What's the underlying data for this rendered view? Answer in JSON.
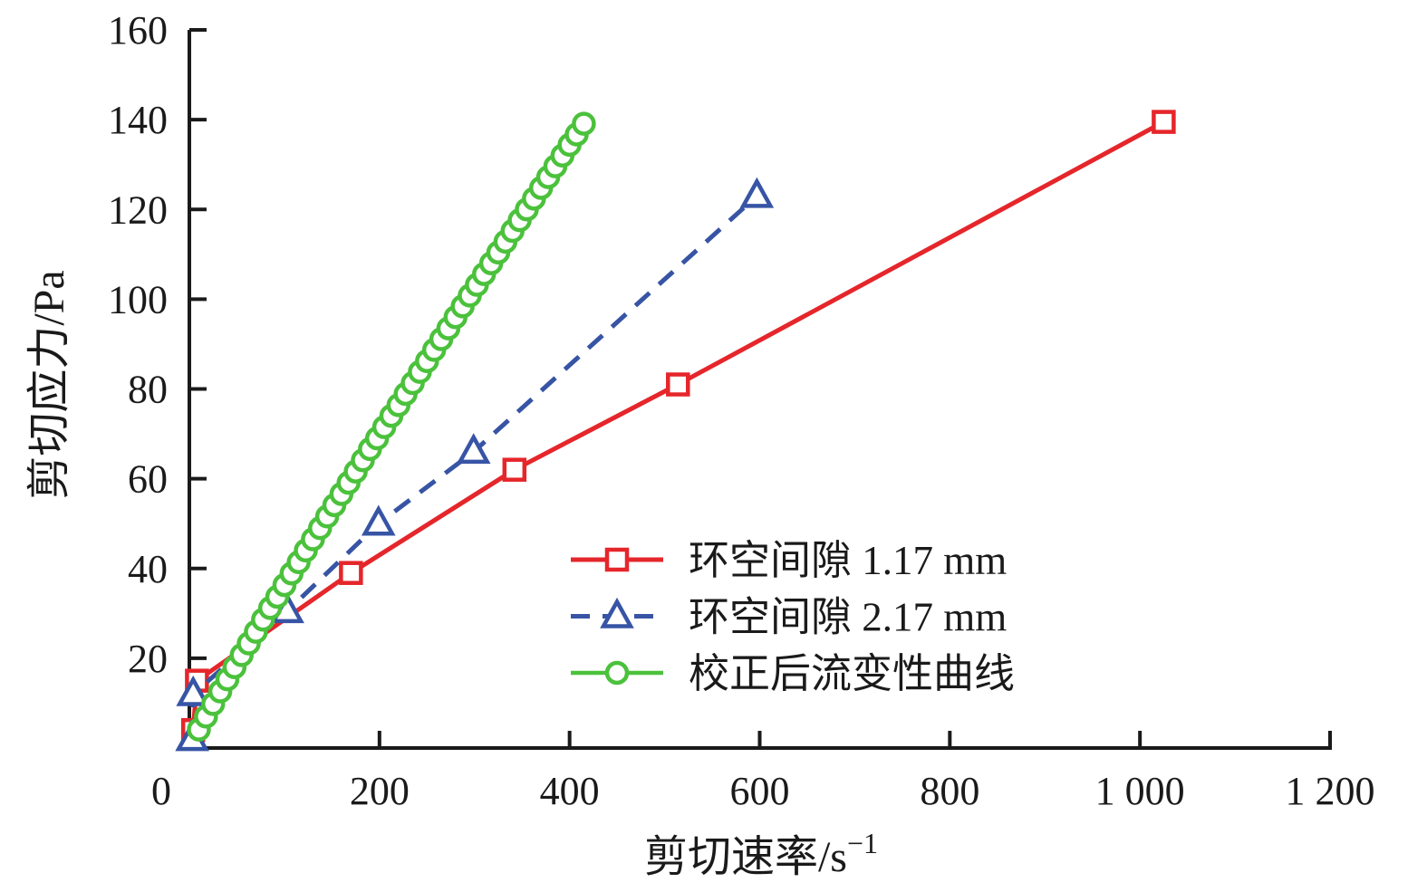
{
  "chart_data": {
    "type": "line",
    "title": "",
    "xlabel": "剪切速率/s⁻¹",
    "xlabel_parts": {
      "base": "剪切速率/s",
      "sup": "−1"
    },
    "ylabel": "剪切应力/Pa",
    "xlim": [
      0,
      1200
    ],
    "ylim": [
      0,
      160
    ],
    "x_ticks": [
      0,
      200,
      400,
      600,
      800,
      1000,
      1200
    ],
    "x_tick_labels": [
      "0",
      "200",
      "400",
      "600",
      "800",
      "1 000",
      "1 200"
    ],
    "y_ticks": [
      20,
      40,
      60,
      80,
      100,
      120,
      140,
      160
    ],
    "y_tick_labels": [
      "20",
      "40",
      "60",
      "80",
      "100",
      "120",
      "140",
      "160"
    ],
    "grid": false,
    "axis_color": "#1a1a1a",
    "background_color": "#ffffff",
    "legend_position": "inside-right-middle",
    "series": [
      {
        "name": "环空间隙 1.17 mm",
        "color": "#e5262b",
        "marker": "square",
        "line": "solid",
        "data": [
          [
            4,
            4
          ],
          [
            8,
            15
          ],
          [
            170,
            39
          ],
          [
            342,
            62
          ],
          [
            514,
            81
          ],
          [
            1025,
            139.5
          ]
        ]
      },
      {
        "name": "环空间隙 2.17 mm",
        "color": "#3754a5",
        "marker": "triangle",
        "line": "dashed",
        "data": [
          [
            3,
            2
          ],
          [
            4,
            12
          ],
          [
            103,
            30.5
          ],
          [
            199,
            50
          ],
          [
            299,
            66
          ],
          [
            597,
            123
          ]
        ]
      },
      {
        "name": "校正后流变性曲线",
        "color": "#4bc13c",
        "marker": "circle",
        "line": "solid",
        "data": [
          [
            10,
            4.1
          ],
          [
            17.5,
            7.0
          ],
          [
            25,
            9.8
          ],
          [
            32.5,
            12.6
          ],
          [
            40,
            15.3
          ],
          [
            47.5,
            18.0
          ],
          [
            55,
            20.7
          ],
          [
            62.5,
            23.3
          ],
          [
            70,
            25.9
          ],
          [
            77.5,
            28.6
          ],
          [
            85,
            31.2
          ],
          [
            92.5,
            33.7
          ],
          [
            100,
            36.3
          ],
          [
            107.5,
            38.9
          ],
          [
            115,
            41.4
          ],
          [
            122.5,
            44.0
          ],
          [
            130,
            46.5
          ],
          [
            137.5,
            49.0
          ],
          [
            145,
            51.6
          ],
          [
            152.5,
            54.1
          ],
          [
            160,
            56.6
          ],
          [
            167.5,
            59.1
          ],
          [
            175,
            61.6
          ],
          [
            182.5,
            64.1
          ],
          [
            190,
            66.6
          ],
          [
            197.5,
            69.0
          ],
          [
            205,
            71.5
          ],
          [
            212.5,
            74.0
          ],
          [
            220,
            76.4
          ],
          [
            227.5,
            78.9
          ],
          [
            235,
            81.3
          ],
          [
            242.5,
            83.8
          ],
          [
            250,
            86.2
          ],
          [
            257.5,
            88.7
          ],
          [
            265,
            91.1
          ],
          [
            272.5,
            93.5
          ],
          [
            280,
            96.0
          ],
          [
            287.5,
            98.4
          ],
          [
            295,
            100.8
          ],
          [
            302.5,
            103.2
          ],
          [
            310,
            105.6
          ],
          [
            317.5,
            108.0
          ],
          [
            325,
            110.4
          ],
          [
            332.5,
            112.8
          ],
          [
            340,
            115.2
          ],
          [
            347.5,
            117.6
          ],
          [
            355,
            120.0
          ],
          [
            362.5,
            122.4
          ],
          [
            370,
            124.8
          ],
          [
            377.5,
            127.2
          ],
          [
            385,
            129.6
          ],
          [
            392.5,
            132.0
          ],
          [
            400,
            134.4
          ],
          [
            407.5,
            136.7
          ],
          [
            415,
            139.1
          ]
        ]
      }
    ]
  }
}
